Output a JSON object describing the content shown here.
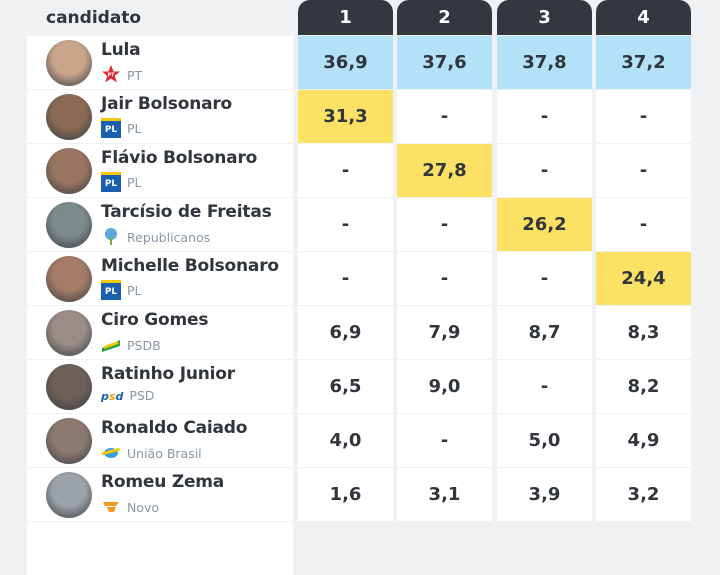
{
  "header": {
    "candidate_label": "candidato",
    "columns": [
      "1",
      "2",
      "3",
      "4"
    ]
  },
  "colors": {
    "lead": "#b3e2f8",
    "highlight": "#fce264",
    "header_bg": "#33383f"
  },
  "rows": [
    {
      "name": "Lula",
      "party": "PT",
      "logo": "pt-star",
      "values": [
        "36,9",
        "37,6",
        "37,8",
        "37,2"
      ],
      "hl": [
        "blue",
        "blue",
        "blue",
        "blue"
      ],
      "av": "#c9a48a"
    },
    {
      "name": "Jair Bolsonaro",
      "party": "PL",
      "logo": "pl",
      "values": [
        "31,3",
        "-",
        "-",
        "-"
      ],
      "hl": [
        "yellow",
        "",
        "",
        ""
      ],
      "av": "#8a6a55"
    },
    {
      "name": "Flávio Bolsonaro",
      "party": "PL",
      "logo": "pl",
      "values": [
        "-",
        "27,8",
        "-",
        "-"
      ],
      "hl": [
        "",
        "yellow",
        "",
        ""
      ],
      "av": "#9a7662"
    },
    {
      "name": "Tarcísio de Freitas",
      "party": "Republicanos",
      "logo": "republicanos",
      "values": [
        "-",
        "-",
        "26,2",
        "-"
      ],
      "hl": [
        "",
        "",
        "yellow",
        ""
      ],
      "av": "#7d8a8c"
    },
    {
      "name": "Michelle Bolsonaro",
      "party": "PL",
      "logo": "pl",
      "values": [
        "-",
        "-",
        "-",
        "24,4"
      ],
      "hl": [
        "",
        "",
        "",
        "yellow"
      ],
      "av": "#a47c68"
    },
    {
      "name": "Ciro Gomes",
      "party": "PSDB",
      "logo": "psdb",
      "values": [
        "6,9",
        "7,9",
        "8,7",
        "8,3"
      ],
      "hl": [
        "",
        "",
        "",
        ""
      ],
      "av": "#9a8d86"
    },
    {
      "name": "Ratinho Junior",
      "party": "PSD",
      "logo": "psd",
      "values": [
        "6,5",
        "9,0",
        "-",
        "8,2"
      ],
      "hl": [
        "",
        "",
        "",
        ""
      ],
      "av": "#6e5f58"
    },
    {
      "name": "Ronaldo Caiado",
      "party": "União Brasil",
      "logo": "uniao",
      "values": [
        "4,0",
        "-",
        "5,0",
        "4,9"
      ],
      "hl": [
        "",
        "",
        "",
        ""
      ],
      "av": "#8c7a70"
    },
    {
      "name": "Romeu Zema",
      "party": "Novo",
      "logo": "novo",
      "values": [
        "1,6",
        "3,1",
        "3,9",
        "3,2"
      ],
      "hl": [
        "",
        "",
        "",
        ""
      ],
      "av": "#9ba2a8"
    }
  ]
}
